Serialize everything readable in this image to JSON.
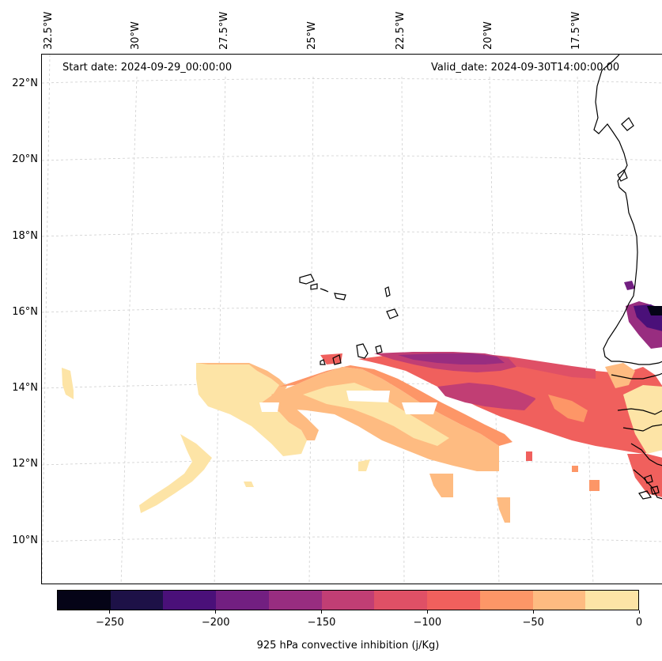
{
  "map": {
    "start_date": "Start date: 2024-09-29_00:00:00",
    "valid_date": "Valid_date: 2024-09-30T14:00:00.00",
    "longitude_labels": [
      "32.5°W",
      "30°W",
      "27.5°W",
      "25°W",
      "22.5°W",
      "20°W",
      "17.5°W"
    ],
    "latitude_labels": [
      "22°N",
      "20°N",
      "18°N",
      "16°N",
      "14°N",
      "12°N",
      "10°N"
    ],
    "gridlines": "dashed light grey",
    "land_fill": "none (coastlines only)",
    "field": "925 hPa convective inhibition"
  },
  "colorbar": {
    "label": "925 hPa convective inhibition (j/Kg)",
    "levels": [
      -275,
      -250,
      -225,
      -200,
      -175,
      -150,
      -125,
      -100,
      -75,
      -50,
      -25,
      0
    ],
    "colors": [
      "#050417",
      "#1d1147",
      "#4a1079",
      "#721f81",
      "#982d80",
      "#c13e74",
      "#df5066",
      "#f0605d",
      "#fd9667",
      "#febb81",
      "#fde4a6"
    ],
    "tick_labels": [
      "−250",
      "−200",
      "−150",
      "−100",
      "−50",
      "0"
    ]
  }
}
